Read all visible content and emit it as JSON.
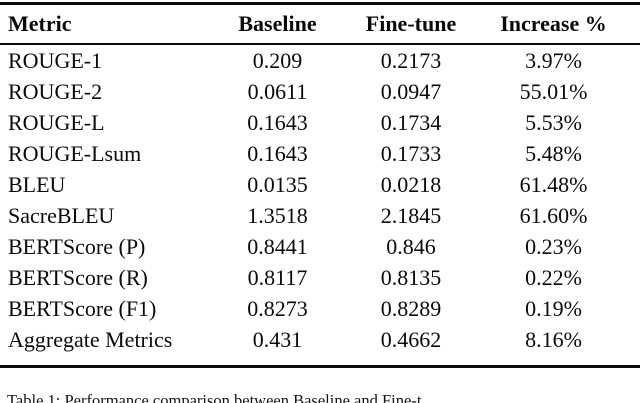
{
  "page": {
    "background_color": "#ffffff",
    "text_color": "#0a0a0a",
    "rule_color": "#0a0a0a"
  },
  "chart_data": {
    "type": "table",
    "title": "",
    "columns": [
      "Metric",
      "Baseline",
      "Fine-tune",
      "Increase %"
    ],
    "rows": [
      [
        "ROUGE-1",
        "0.209",
        "0.2173",
        "3.97%"
      ],
      [
        "ROUGE-2",
        "0.0611",
        "0.0947",
        "55.01%"
      ],
      [
        "ROUGE-L",
        "0.1643",
        "0.1734",
        "5.53%"
      ],
      [
        "ROUGE-Lsum",
        "0.1643",
        "0.1733",
        "5.48%"
      ],
      [
        "BLEU",
        "0.0135",
        "0.0218",
        "61.48%"
      ],
      [
        "SacreBLEU",
        "1.3518",
        "2.1845",
        "61.60%"
      ],
      [
        "BERTScore (P)",
        "0.8441",
        "0.846",
        "0.23%"
      ],
      [
        "BERTScore (R)",
        "0.8117",
        "0.8135",
        "0.22%"
      ],
      [
        "BERTScore (F1)",
        "0.8273",
        "0.8289",
        "0.19%"
      ],
      [
        "Aggregate Metrics",
        "0.431",
        "0.4662",
        "8.16%"
      ]
    ],
    "caption": "Table 1: Performance comparison between Baseline and Fine-t",
    "layout": {
      "column_alignment": [
        "left",
        "center",
        "center",
        "center"
      ],
      "rules": [
        "thick-top",
        "thin-under-header",
        "thick-bottom"
      ]
    }
  }
}
